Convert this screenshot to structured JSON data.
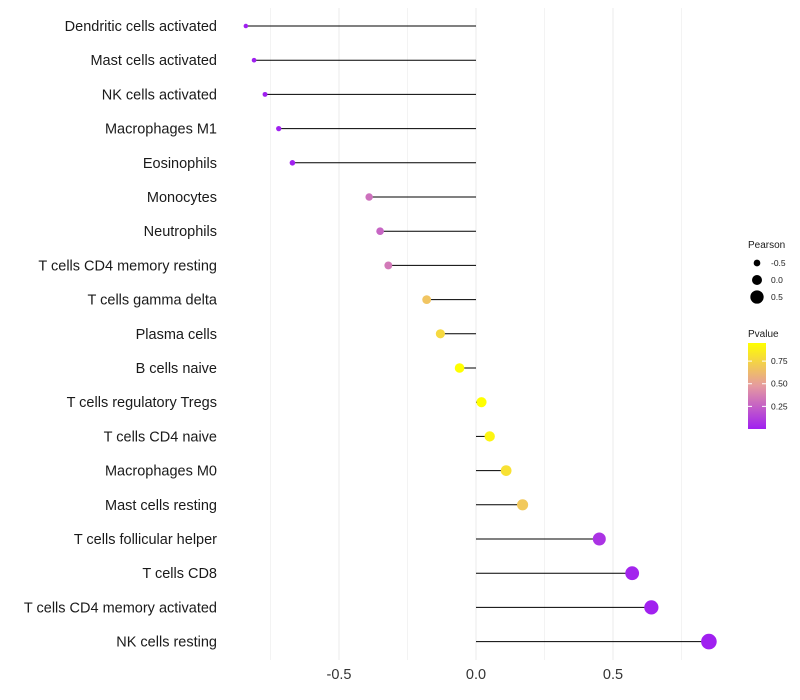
{
  "chart_data": {
    "type": "lollipop",
    "title": "",
    "xlabel": "",
    "ylabel": "",
    "xlim": [
      -0.85,
      0.87
    ],
    "x_ticks": [
      -0.5,
      0.0,
      0.5
    ],
    "x_tick_labels": [
      "-0.5",
      "0.0",
      "0.5"
    ],
    "grid": true,
    "categories": [
      "Dendritic cells activated",
      "Mast cells activated",
      "NK cells activated",
      "Macrophages M1",
      "Eosinophils",
      "Monocytes",
      "Neutrophils",
      "T cells CD4 memory resting",
      "T cells gamma delta",
      "Plasma cells",
      "B cells naive",
      "T cells regulatory  Tregs ",
      "T cells CD4 naive",
      "Macrophages M0",
      "Mast cells resting",
      "T cells follicular helper",
      "T cells CD8",
      "T cells CD4 memory activated",
      "NK cells resting"
    ],
    "pearson": [
      -0.84,
      -0.81,
      -0.77,
      -0.72,
      -0.67,
      -0.39,
      -0.35,
      -0.32,
      -0.18,
      -0.13,
      -0.06,
      0.02,
      0.05,
      0.11,
      0.17,
      0.45,
      0.57,
      0.64,
      0.85
    ],
    "pvalue": [
      0.0001,
      0.0001,
      0.001,
      0.002,
      0.004,
      0.3,
      0.26,
      0.33,
      0.66,
      0.76,
      0.95,
      0.97,
      0.9,
      0.8,
      0.68,
      0.07,
      0.02,
      0.005,
      0.0001
    ],
    "size_legend": {
      "title": "Pearson",
      "values": [
        -0.5,
        0.0,
        0.5
      ],
      "labels": [
        "-0.5",
        "0.0",
        "0.5"
      ]
    },
    "color_legend": {
      "title": "Pvalue",
      "range": [
        0.0,
        0.95
      ],
      "breaks": [
        0.75,
        0.5,
        0.25
      ],
      "labels": [
        "0.75",
        "0.50",
        "0.25"
      ],
      "low_color": "#A020F0",
      "mid_color": "#E8A0A0",
      "high_color": "#FFFF00"
    },
    "colors": {
      "stem": "#000000",
      "grid": "#ebebeb",
      "background": "#ffffff"
    }
  }
}
